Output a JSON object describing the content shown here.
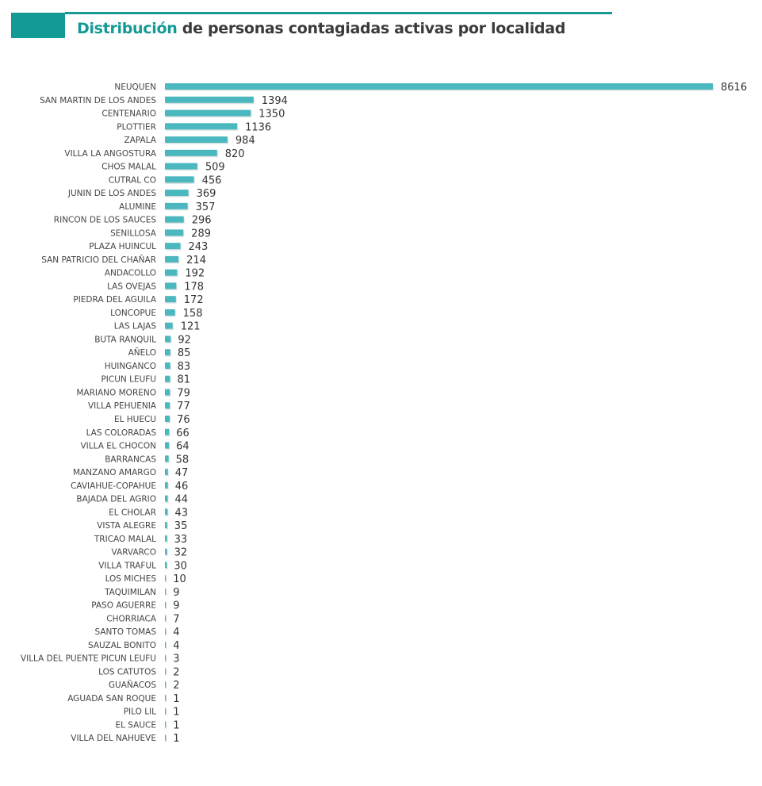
{
  "title": {
    "highlight": "Distribución",
    "rest": " de personas contagiadas activas por localidad"
  },
  "colors": {
    "accent": "#139a94",
    "bar": "#4bb8c0"
  },
  "chart_data": {
    "type": "bar",
    "orientation": "horizontal",
    "title": "Distribución de personas contagiadas activas por localidad",
    "xlabel": "",
    "ylabel": "",
    "grid": false,
    "xlim": [
      0,
      8616
    ],
    "categories": [
      "NEUQUEN",
      "SAN MARTIN DE LOS ANDES",
      "CENTENARIO",
      "PLOTTIER",
      "ZAPALA",
      "VILLA LA ANGOSTURA",
      "CHOS MALAL",
      "CUTRAL CO",
      "JUNIN DE LOS ANDES",
      "ALUMINE",
      "RINCON DE LOS SAUCES",
      "SENILLOSA",
      "PLAZA HUINCUL",
      "SAN PATRICIO DEL CHAÑAR",
      "ANDACOLLO",
      "LAS OVEJAS",
      "PIEDRA DEL AGUILA",
      "LONCOPUE",
      "LAS LAJAS",
      "BUTA RANQUIL",
      "AÑELO",
      "HUINGANCO",
      "PICUN LEUFU",
      "MARIANO MORENO",
      "VILLA PEHUENIA",
      "EL HUECU",
      "LAS COLORADAS",
      "VILLA EL CHOCON",
      "BARRANCAS",
      "MANZANO AMARGO",
      "CAVIAHUE-COPAHUE",
      "BAJADA DEL AGRIO",
      "EL CHOLAR",
      "VISTA ALEGRE",
      "TRICAO MALAL",
      "VARVARCO",
      "VILLA TRAFUL",
      "LOS MICHES",
      "TAQUIMILAN",
      "PASO AGUERRE",
      "CHORRIACA",
      "SANTO TOMAS",
      "SAUZAL BONITO",
      "VILLA DEL PUENTE PICUN LEUFU",
      "LOS CATUTOS",
      "GUAÑACOS",
      "AGUADA SAN ROQUE",
      "PILO LIL",
      "EL SAUCE",
      "VILLA DEL NAHUEVE"
    ],
    "values": [
      8616,
      1394,
      1350,
      1136,
      984,
      820,
      509,
      456,
      369,
      357,
      296,
      289,
      243,
      214,
      192,
      178,
      172,
      158,
      121,
      92,
      85,
      83,
      81,
      79,
      77,
      76,
      66,
      64,
      58,
      47,
      46,
      44,
      43,
      35,
      33,
      32,
      30,
      10,
      9,
      9,
      7,
      4,
      4,
      3,
      2,
      2,
      1,
      1,
      1,
      1
    ]
  }
}
